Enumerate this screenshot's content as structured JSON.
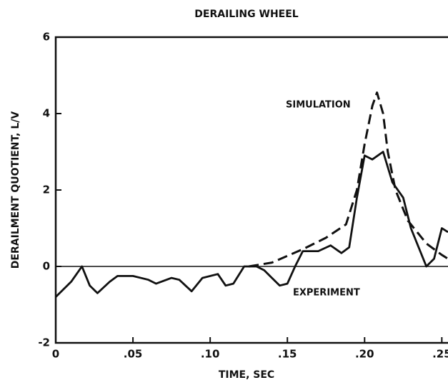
{
  "chart_data": {
    "type": "line",
    "title": "DERAILING WHEEL",
    "x_label": "TIME, SEC",
    "y_label": "DERAILMENT QUOTIENT, L/V",
    "annotations": [
      "SIMULATION",
      "EXPERIMENT"
    ],
    "xlim": [
      0,
      0.254
    ],
    "ylim": [
      -2,
      6
    ],
    "xticks": [
      0,
      {
        "value": 0.05,
        "label": ".05"
      },
      {
        "value": 0.1,
        "label": ".10"
      },
      {
        "value": 0.15,
        "label": ".15"
      },
      {
        "value": 0.2,
        "label": ".20"
      },
      {
        "value": 0.25,
        "label": ".25"
      }
    ],
    "yticks": [
      -2,
      0,
      2,
      4,
      6
    ],
    "series": [
      {
        "name": "EXPERIMENT",
        "color": "#111111",
        "dash": false,
        "x": [
          0,
          0.01,
          0.017,
          0.022,
          0.027,
          0.035,
          0.04,
          0.05,
          0.06,
          0.065,
          0.075,
          0.08,
          0.088,
          0.095,
          0.105,
          0.11,
          0.115,
          0.122,
          0.13,
          0.135,
          0.14,
          0.145,
          0.15,
          0.155,
          0.16,
          0.17,
          0.178,
          0.185,
          0.19,
          0.195,
          0.2,
          0.205,
          0.212,
          0.218,
          0.225,
          0.23,
          0.24,
          0.245,
          0.25,
          0.254
        ],
        "values": [
          -0.8,
          -0.4,
          0,
          -0.5,
          -0.7,
          -0.4,
          -0.25,
          -0.25,
          -0.35,
          -0.45,
          -0.3,
          -0.35,
          -0.65,
          -0.3,
          -0.2,
          -0.5,
          -0.45,
          0,
          0,
          -0.1,
          -0.3,
          -0.5,
          -0.45,
          0,
          0.4,
          0.4,
          0.55,
          0.35,
          0.5,
          1.8,
          2.9,
          2.8,
          3.0,
          2.2,
          1.8,
          1.0,
          0,
          0.2,
          1.0,
          0.9
        ]
      },
      {
        "name": "SIMULATION",
        "color": "#111111",
        "dash": true,
        "x": [
          0.125,
          0.14,
          0.16,
          0.175,
          0.188,
          0.195,
          0.2,
          0.205,
          0.208,
          0.212,
          0.215,
          0.22,
          0.228,
          0.24,
          0.25,
          0.254
        ],
        "values": [
          0,
          0.1,
          0.45,
          0.75,
          1.1,
          2.0,
          3.2,
          4.2,
          4.55,
          4.0,
          3.0,
          2.0,
          1.2,
          0.6,
          0.3,
          0.2
        ]
      }
    ]
  }
}
